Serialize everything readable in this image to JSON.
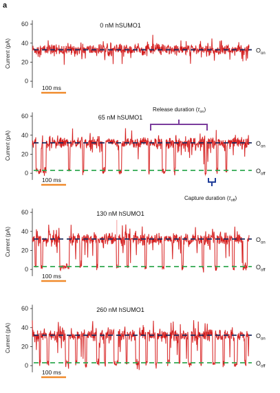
{
  "figure_label": "a",
  "colors": {
    "trace": "#d01818",
    "trace_light": "#f08080",
    "on_line": "#1b2a5c",
    "off_line": "#2fa84f",
    "scale_bar": "#f08a2a",
    "bracket": "#7a3c9c",
    "capture_bracket": "#1f3d99",
    "axis": "#222222"
  },
  "annotations": {
    "release": {
      "prefix": "Release duration (",
      "symbol": "τ",
      "sub": "on",
      "suffix": ")"
    },
    "capture": {
      "prefix": "Capture duration (",
      "symbol": "τ",
      "sub": "off",
      "suffix": ")"
    }
  },
  "chart_data": [
    {
      "type": "line",
      "title": "0 nM hSUMO1",
      "ylabel": "Current (pA)",
      "xlabel": "",
      "yticks": [
        0,
        20,
        40,
        60
      ],
      "ylim": [
        -10,
        68
      ],
      "scale_bar": {
        "label": "100 ms",
        "value_ms": 100
      },
      "levels": [
        {
          "label": "O",
          "sub": "on",
          "value": 33,
          "color_key": "on_line"
        }
      ],
      "duration_ms": 500,
      "baseline_pA": 33,
      "noise_pA": 3,
      "events_ms": []
    },
    {
      "type": "line",
      "title": "65 nM hSUMO1",
      "ylabel": "Current (pA)",
      "xlabel": "",
      "yticks": [
        0,
        20,
        40,
        60
      ],
      "ylim": [
        -10,
        68
      ],
      "scale_bar": {
        "label": "100 ms",
        "value_ms": 100
      },
      "levels": [
        {
          "label": "O",
          "sub": "on",
          "value": 32,
          "color_key": "on_line"
        },
        {
          "label": "O",
          "sub": "off",
          "value": 3,
          "color_key": "off_line"
        }
      ],
      "duration_ms": 500,
      "baseline_pA": 32,
      "noise_pA": 3,
      "events_ms": [
        [
          8,
          12
        ],
        [
          24,
          8
        ],
        [
          83,
          4
        ],
        [
          116,
          3
        ],
        [
          162,
          7
        ],
        [
          200,
          6
        ],
        [
          268,
          2
        ],
        [
          300,
          8
        ],
        [
          327,
          3
        ],
        [
          398,
          4
        ],
        [
          425,
          3
        ],
        [
          446,
          3
        ]
      ]
    },
    {
      "type": "line",
      "title": "130 nM hSUMO1",
      "ylabel": "Current (pA)",
      "xlabel": "",
      "yticks": [
        0,
        20,
        40,
        60
      ],
      "ylim": [
        -10,
        68
      ],
      "scale_bar": {
        "label": "100 ms",
        "value_ms": 100
      },
      "levels": [
        {
          "label": "O",
          "sub": "on",
          "value": 32,
          "color_key": "on_line"
        },
        {
          "label": "O",
          "sub": "off",
          "value": 3,
          "color_key": "off_line"
        }
      ],
      "duration_ms": 500,
      "baseline_pA": 32,
      "noise_pA": 3.2,
      "events_ms": [
        [
          6,
          3
        ],
        [
          20,
          4
        ],
        [
          63,
          22
        ],
        [
          110,
          4
        ],
        [
          148,
          3
        ],
        [
          194,
          5
        ],
        [
          218,
          4
        ],
        [
          260,
          3
        ],
        [
          300,
          4
        ],
        [
          345,
          3
        ],
        [
          392,
          3
        ],
        [
          421,
          5
        ],
        [
          462,
          4
        ],
        [
          486,
          10
        ]
      ]
    },
    {
      "type": "line",
      "title": "260 nM hSUMO1",
      "ylabel": "Current (pA)",
      "xlabel": "",
      "yticks": [
        0,
        20,
        40,
        60
      ],
      "ylim": [
        -10,
        68
      ],
      "scale_bar": {
        "label": "100 ms",
        "value_ms": 100
      },
      "levels": [
        {
          "label": "O",
          "sub": "on",
          "value": 32,
          "color_key": "on_line"
        },
        {
          "label": "O",
          "sub": "off",
          "value": 3,
          "color_key": "off_line"
        }
      ],
      "duration_ms": 500,
      "baseline_pA": 32,
      "noise_pA": 3.2,
      "events_ms": [
        [
          16,
          3
        ],
        [
          34,
          4
        ],
        [
          76,
          8
        ],
        [
          100,
          3
        ],
        [
          122,
          3
        ],
        [
          148,
          6
        ],
        [
          166,
          3
        ],
        [
          188,
          10
        ],
        [
          216,
          3
        ],
        [
          238,
          9
        ],
        [
          262,
          3
        ],
        [
          284,
          4
        ],
        [
          312,
          5
        ],
        [
          338,
          3
        ],
        [
          360,
          7
        ],
        [
          388,
          3
        ],
        [
          416,
          6
        ],
        [
          440,
          3
        ],
        [
          466,
          7
        ],
        [
          490,
          3
        ]
      ]
    }
  ]
}
